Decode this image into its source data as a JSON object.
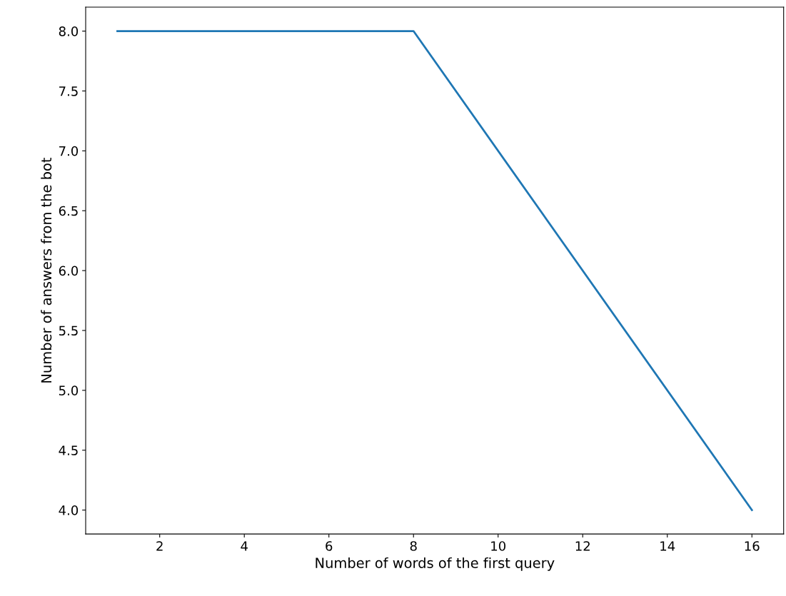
{
  "chart_data": {
    "type": "line",
    "xlabel": "Number of words of the first query",
    "ylabel": "Number of answers from the bot",
    "x": [
      1,
      8,
      16
    ],
    "series": [
      {
        "color": "#1f77b4",
        "values": [
          8,
          8,
          4
        ]
      }
    ],
    "xlim": [
      0.25,
      16.75
    ],
    "ylim": [
      3.8,
      8.2
    ],
    "xticks": [
      2,
      4,
      6,
      8,
      10,
      12,
      14,
      16
    ],
    "yticks": [
      {
        "value": 4,
        "label": "4.0"
      },
      {
        "value": 4.5,
        "label": "4.5"
      },
      {
        "value": 5,
        "label": "5.0"
      },
      {
        "value": 5.5,
        "label": "5.5"
      },
      {
        "value": 6,
        "label": "6.0"
      },
      {
        "value": 6.5,
        "label": "6.5"
      },
      {
        "value": 7,
        "label": "7.0"
      },
      {
        "value": 7.5,
        "label": "7.5"
      },
      {
        "value": 8,
        "label": "8.0"
      }
    ],
    "grid": false,
    "legend": false
  }
}
